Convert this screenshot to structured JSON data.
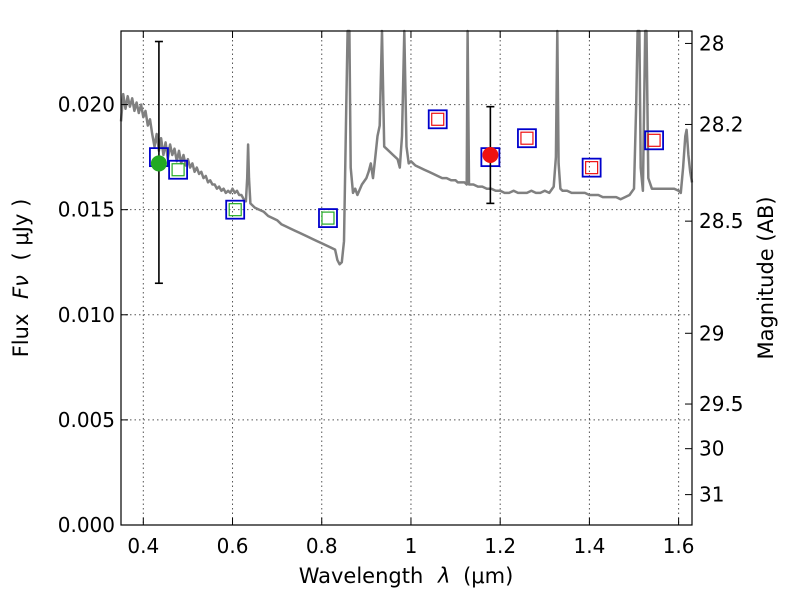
{
  "chart_data": {
    "type": "line",
    "xlabel": "Wavelength",
    "xlabel_symbol": "λ",
    "xlabel_unit": "(μm)",
    "ylabel": "Flux",
    "ylabel_symbol": "Fν",
    "ylabel_unit": "( μJy )",
    "y2label": "Magnitude (AB)",
    "xlim": [
      0.35,
      1.63
    ],
    "ylim": [
      0.0,
      0.0235
    ],
    "grid": true,
    "x_ticks": [
      {
        "value": 0.4,
        "label": "0.4"
      },
      {
        "value": 0.6,
        "label": "0.6"
      },
      {
        "value": 0.8,
        "label": "0.8"
      },
      {
        "value": 1.0,
        "label": "1"
      },
      {
        "value": 1.2,
        "label": "1.2"
      },
      {
        "value": 1.4,
        "label": "1.4"
      },
      {
        "value": 1.6,
        "label": "1.6"
      }
    ],
    "y_ticks": [
      {
        "value": 0.0,
        "label": "0.000"
      },
      {
        "value": 0.005,
        "label": "0.005"
      },
      {
        "value": 0.01,
        "label": "0.010"
      },
      {
        "value": 0.015,
        "label": "0.015"
      },
      {
        "value": 0.02,
        "label": "0.020"
      }
    ],
    "y2_ticks": [
      {
        "mag": 28,
        "label": "28"
      },
      {
        "mag": 28.2,
        "label": "28.2"
      },
      {
        "mag": 28.5,
        "label": "28.5"
      },
      {
        "mag": 29,
        "label": "29"
      },
      {
        "mag": 29.5,
        "label": "29.5"
      },
      {
        "mag": 30,
        "label": "30"
      },
      {
        "mag": 31,
        "label": "31"
      }
    ],
    "colors": {
      "model": "#808080",
      "square_outline": "#0000cc",
      "green": "#22aa22",
      "red": "#ee1111",
      "grid": "#555555"
    },
    "model_spectrum": {
      "name": "",
      "points": [
        [
          0.35,
          0.0192
        ],
        [
          0.355,
          0.0205
        ],
        [
          0.36,
          0.0198
        ],
        [
          0.365,
          0.0204
        ],
        [
          0.37,
          0.0199
        ],
        [
          0.375,
          0.0203
        ],
        [
          0.38,
          0.0197
        ],
        [
          0.385,
          0.0201
        ],
        [
          0.39,
          0.0196
        ],
        [
          0.395,
          0.02
        ],
        [
          0.4,
          0.0194
        ],
        [
          0.405,
          0.0197
        ],
        [
          0.41,
          0.019
        ],
        [
          0.415,
          0.0193
        ],
        [
          0.42,
          0.0186
        ],
        [
          0.425,
          0.018
        ],
        [
          0.43,
          0.0186
        ],
        [
          0.435,
          0.0178
        ],
        [
          0.44,
          0.0184
        ],
        [
          0.445,
          0.0176
        ],
        [
          0.45,
          0.0182
        ],
        [
          0.455,
          0.0174
        ],
        [
          0.46,
          0.0181
        ],
        [
          0.465,
          0.0176
        ],
        [
          0.47,
          0.0179
        ],
        [
          0.475,
          0.0173
        ],
        [
          0.48,
          0.0178
        ],
        [
          0.485,
          0.0172
        ],
        [
          0.49,
          0.0176
        ],
        [
          0.495,
          0.0171
        ],
        [
          0.5,
          0.0174
        ],
        [
          0.505,
          0.017
        ],
        [
          0.51,
          0.0172
        ],
        [
          0.515,
          0.0168
        ],
        [
          0.52,
          0.017
        ],
        [
          0.525,
          0.0167
        ],
        [
          0.53,
          0.0168
        ],
        [
          0.535,
          0.0165
        ],
        [
          0.54,
          0.0166
        ],
        [
          0.545,
          0.0163
        ],
        [
          0.55,
          0.0164
        ],
        [
          0.555,
          0.0162
        ],
        [
          0.56,
          0.0162
        ],
        [
          0.565,
          0.016
        ],
        [
          0.57,
          0.0161
        ],
        [
          0.575,
          0.0159
        ],
        [
          0.58,
          0.016
        ],
        [
          0.585,
          0.0158
        ],
        [
          0.59,
          0.0159
        ],
        [
          0.595,
          0.0158
        ],
        [
          0.6,
          0.016
        ],
        [
          0.605,
          0.0158
        ],
        [
          0.61,
          0.0159
        ],
        [
          0.615,
          0.0157
        ],
        [
          0.62,
          0.0157
        ],
        [
          0.625,
          0.0155
        ],
        [
          0.63,
          0.0154
        ],
        [
          0.633,
          0.0165
        ],
        [
          0.635,
          0.0181
        ],
        [
          0.637,
          0.0165
        ],
        [
          0.64,
          0.0153
        ],
        [
          0.645,
          0.0152
        ],
        [
          0.65,
          0.0151
        ],
        [
          0.66,
          0.015
        ],
        [
          0.67,
          0.0149
        ],
        [
          0.68,
          0.0147
        ],
        [
          0.69,
          0.0146
        ],
        [
          0.7,
          0.0145
        ],
        [
          0.71,
          0.0143
        ],
        [
          0.72,
          0.0142
        ],
        [
          0.73,
          0.0141
        ],
        [
          0.74,
          0.014
        ],
        [
          0.75,
          0.0139
        ],
        [
          0.76,
          0.0138
        ],
        [
          0.77,
          0.0137
        ],
        [
          0.78,
          0.0136
        ],
        [
          0.79,
          0.0135
        ],
        [
          0.8,
          0.0134
        ],
        [
          0.81,
          0.0133
        ],
        [
          0.82,
          0.0132
        ],
        [
          0.83,
          0.0131
        ],
        [
          0.835,
          0.0126
        ],
        [
          0.84,
          0.0124
        ],
        [
          0.845,
          0.0125
        ],
        [
          0.85,
          0.0135
        ],
        [
          0.855,
          0.02
        ],
        [
          0.858,
          0.024
        ],
        [
          0.862,
          0.024
        ],
        [
          0.865,
          0.017
        ],
        [
          0.87,
          0.0158
        ],
        [
          0.875,
          0.016
        ],
        [
          0.88,
          0.0157
        ],
        [
          0.89,
          0.0162
        ],
        [
          0.9,
          0.0165
        ],
        [
          0.905,
          0.0168
        ],
        [
          0.91,
          0.0172
        ],
        [
          0.915,
          0.0165
        ],
        [
          0.92,
          0.0175
        ],
        [
          0.925,
          0.0185
        ],
        [
          0.93,
          0.019
        ],
        [
          0.935,
          0.024
        ],
        [
          0.94,
          0.018
        ],
        [
          0.95,
          0.0178
        ],
        [
          0.96,
          0.0176
        ],
        [
          0.97,
          0.0174
        ],
        [
          0.975,
          0.017
        ],
        [
          0.98,
          0.0185
        ],
        [
          0.985,
          0.024
        ],
        [
          0.99,
          0.018
        ],
        [
          0.995,
          0.0172
        ],
        [
          1.0,
          0.0173
        ],
        [
          1.01,
          0.0171
        ],
        [
          1.02,
          0.017
        ],
        [
          1.03,
          0.0169
        ],
        [
          1.04,
          0.0168
        ],
        [
          1.05,
          0.0167
        ],
        [
          1.06,
          0.0166
        ],
        [
          1.07,
          0.0165
        ],
        [
          1.08,
          0.0165
        ],
        [
          1.09,
          0.0164
        ],
        [
          1.1,
          0.0164
        ],
        [
          1.105,
          0.0163
        ],
        [
          1.11,
          0.0163
        ],
        [
          1.115,
          0.0163
        ],
        [
          1.12,
          0.0163
        ],
        [
          1.125,
          0.0162
        ],
        [
          1.127,
          0.024
        ],
        [
          1.13,
          0.0162
        ],
        [
          1.14,
          0.0162
        ],
        [
          1.15,
          0.0161
        ],
        [
          1.16,
          0.0161
        ],
        [
          1.17,
          0.016
        ],
        [
          1.18,
          0.016
        ],
        [
          1.19,
          0.0159
        ],
        [
          1.2,
          0.0159
        ],
        [
          1.21,
          0.0158
        ],
        [
          1.22,
          0.0158
        ],
        [
          1.23,
          0.0159
        ],
        [
          1.24,
          0.0158
        ],
        [
          1.25,
          0.0158
        ],
        [
          1.26,
          0.0158
        ],
        [
          1.27,
          0.0159
        ],
        [
          1.28,
          0.0158
        ],
        [
          1.29,
          0.0158
        ],
        [
          1.3,
          0.0159
        ],
        [
          1.31,
          0.0158
        ],
        [
          1.32,
          0.0161
        ],
        [
          1.325,
          0.0175
        ],
        [
          1.328,
          0.024
        ],
        [
          1.331,
          0.0172
        ],
        [
          1.335,
          0.016
        ],
        [
          1.34,
          0.0159
        ],
        [
          1.35,
          0.0159
        ],
        [
          1.36,
          0.0158
        ],
        [
          1.37,
          0.0158
        ],
        [
          1.38,
          0.0158
        ],
        [
          1.39,
          0.0158
        ],
        [
          1.4,
          0.0157
        ],
        [
          1.41,
          0.0157
        ],
        [
          1.42,
          0.0157
        ],
        [
          1.43,
          0.0156
        ],
        [
          1.44,
          0.0156
        ],
        [
          1.45,
          0.0156
        ],
        [
          1.46,
          0.0156
        ],
        [
          1.47,
          0.0155
        ],
        [
          1.48,
          0.0156
        ],
        [
          1.49,
          0.0157
        ],
        [
          1.5,
          0.016
        ],
        [
          1.505,
          0.02
        ],
        [
          1.508,
          0.024
        ],
        [
          1.512,
          0.024
        ],
        [
          1.515,
          0.017
        ],
        [
          1.52,
          0.0159
        ],
        [
          1.525,
          0.024
        ],
        [
          1.528,
          0.024
        ],
        [
          1.532,
          0.0165
        ],
        [
          1.54,
          0.016
        ],
        [
          1.55,
          0.016
        ],
        [
          1.56,
          0.016
        ],
        [
          1.57,
          0.016
        ],
        [
          1.58,
          0.016
        ],
        [
          1.59,
          0.016
        ],
        [
          1.6,
          0.0159
        ],
        [
          1.605,
          0.0158
        ],
        [
          1.61,
          0.017
        ],
        [
          1.615,
          0.0185
        ],
        [
          1.618,
          0.0188
        ],
        [
          1.622,
          0.0176
        ],
        [
          1.626,
          0.0168
        ],
        [
          1.63,
          0.0163
        ]
      ]
    },
    "model_photometry_squares": [
      {
        "x": 0.435,
        "y": 0.0175
      },
      {
        "x": 0.478,
        "y": 0.0169
      },
      {
        "x": 0.606,
        "y": 0.015
      },
      {
        "x": 0.814,
        "y": 0.0146
      },
      {
        "x": 1.06,
        "y": 0.0193
      },
      {
        "x": 1.178,
        "y": 0.0175
      },
      {
        "x": 1.26,
        "y": 0.0184
      },
      {
        "x": 1.405,
        "y": 0.017
      },
      {
        "x": 1.545,
        "y": 0.0183
      }
    ],
    "inner_squares": [
      {
        "x": 0.478,
        "y": 0.0169,
        "color": "green"
      },
      {
        "x": 0.606,
        "y": 0.015,
        "color": "green"
      },
      {
        "x": 0.814,
        "y": 0.0146,
        "color": "green"
      },
      {
        "x": 1.06,
        "y": 0.0193,
        "color": "red"
      },
      {
        "x": 1.26,
        "y": 0.0184,
        "color": "red"
      },
      {
        "x": 1.405,
        "y": 0.017,
        "color": "red"
      },
      {
        "x": 1.545,
        "y": 0.0183,
        "color": "red"
      }
    ],
    "observed_points": [
      {
        "x": 0.435,
        "y": 0.0172,
        "ylow": 0.0115,
        "yhigh": 0.023,
        "color": "green"
      },
      {
        "x": 1.178,
        "y": 0.0176,
        "ylow": 0.0153,
        "yhigh": 0.0199,
        "color": "red"
      }
    ]
  }
}
